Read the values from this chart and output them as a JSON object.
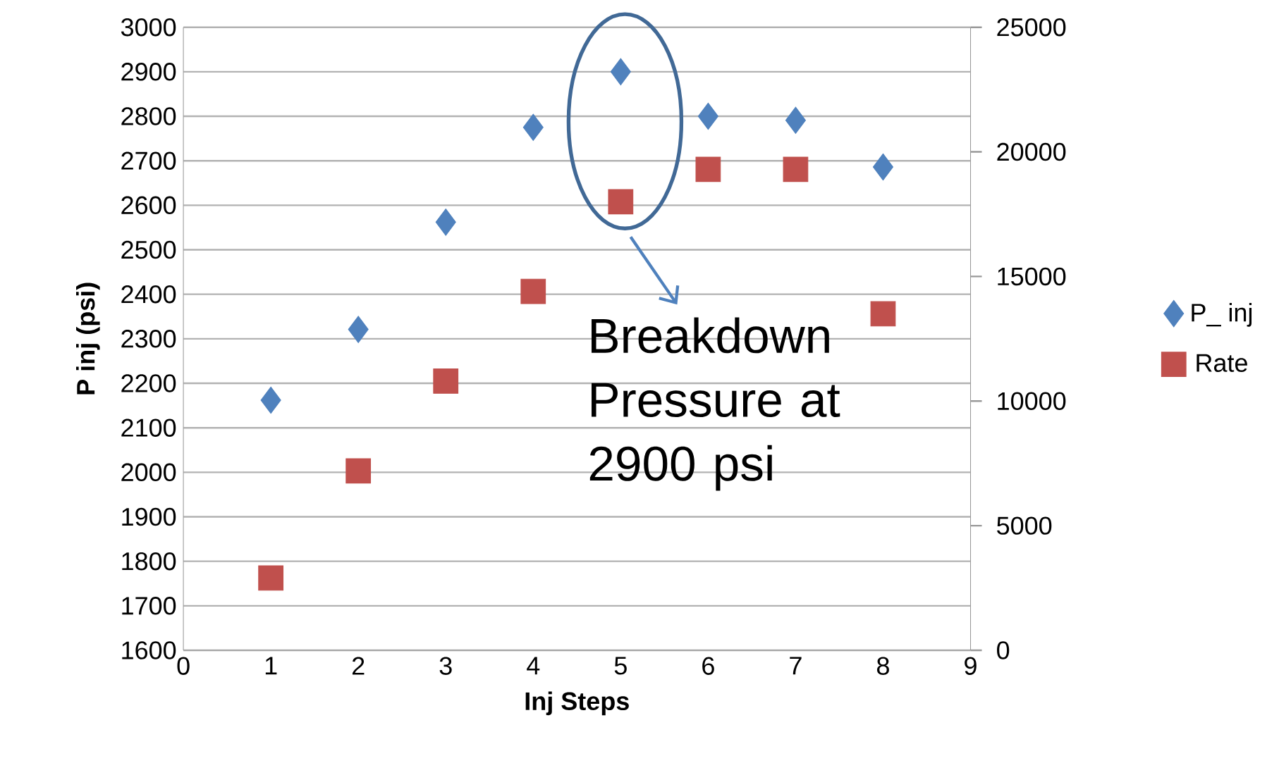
{
  "chart_data": {
    "type": "scatter",
    "xlabel": "Inj Steps",
    "ylabel": "P inj (psi)",
    "x": [
      1,
      2,
      3,
      4,
      5,
      6,
      7,
      8
    ],
    "series": [
      {
        "name": "P_ inj",
        "color": "#4f81bd",
        "marker": "diamond",
        "values": [
          2162,
          2321,
          2562,
          2775,
          2900,
          2800,
          2791,
          2686
        ]
      },
      {
        "name": "Rate",
        "color": "#c0504d",
        "marker": "square",
        "axis": "y2",
        "values": [
          2900,
          7200,
          10800,
          14400,
          18000,
          19300,
          19300,
          13500
        ]
      }
    ],
    "xlim": [
      0,
      9
    ],
    "xticks": [
      0,
      1,
      2,
      3,
      4,
      5,
      6,
      7,
      8,
      9
    ],
    "ylim": [
      1600,
      3000
    ],
    "yticks": [
      1600,
      1700,
      1800,
      1900,
      2000,
      2100,
      2200,
      2300,
      2400,
      2500,
      2600,
      2700,
      2800,
      2900,
      3000
    ],
    "y2lim": [
      0,
      25000
    ],
    "y2ticks": [
      0,
      5000,
      10000,
      15000,
      20000,
      25000
    ],
    "grid": "y",
    "legend": "right",
    "annotations": [
      "Breakdown Pressure at 2900 psi"
    ]
  }
}
